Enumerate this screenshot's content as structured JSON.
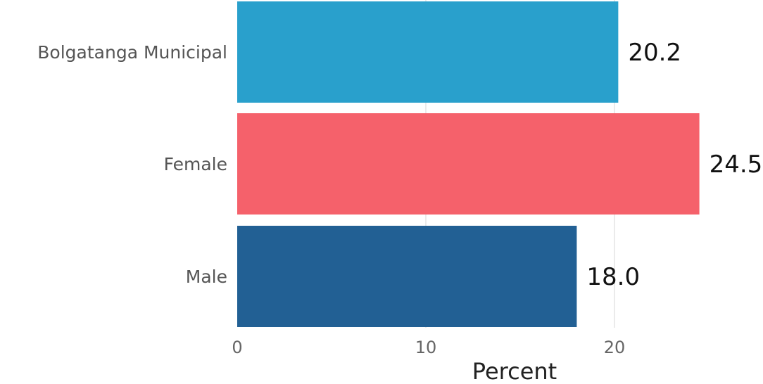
{
  "chart_data": {
    "type": "bar",
    "orientation": "horizontal",
    "categories": [
      "Bolgatanga Municipal",
      "Female",
      "Male"
    ],
    "values": [
      20.2,
      24.5,
      18.0
    ],
    "value_labels": [
      "20.2",
      "24.5",
      "18.0"
    ],
    "colors": [
      "#29a0cc",
      "#f5616b",
      "#226094"
    ],
    "xlabel": "Percent",
    "ylabel": "",
    "title": "",
    "xlim": [
      0,
      25
    ],
    "xticks": [
      0,
      10,
      20
    ],
    "xtick_labels": [
      "0",
      "10",
      "20"
    ],
    "grid": true,
    "legend": "none"
  }
}
